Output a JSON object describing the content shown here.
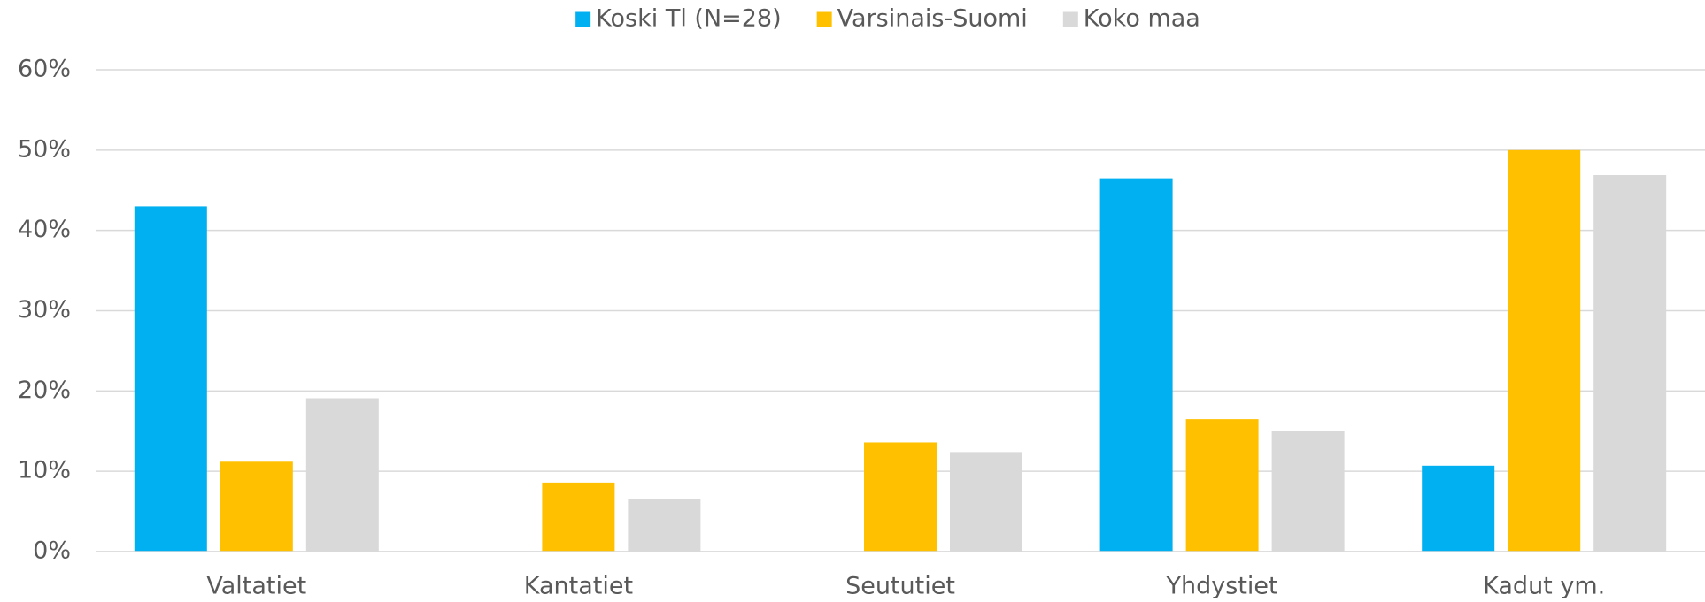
{
  "chart_data": {
    "type": "bar",
    "categories": [
      "Valtatiet",
      "Kantatiet",
      "Seututiet",
      "Yhdystiet",
      "Kadut ym."
    ],
    "series": [
      {
        "name": "Koski Tl (N=28)",
        "color": "#00b0f0",
        "values": [
          43,
          0,
          0,
          46.5,
          10.7
        ]
      },
      {
        "name": "Varsinais-Suomi",
        "color": "#ffc000",
        "values": [
          11.2,
          8.6,
          13.6,
          16.5,
          50
        ]
      },
      {
        "name": "Koko maa",
        "color": "#d9d9d9",
        "values": [
          19.1,
          6.5,
          12.4,
          15,
          46.9
        ]
      }
    ],
    "ylim": [
      0,
      60
    ],
    "yticks": [
      {
        "value": 0,
        "label": "0%"
      },
      {
        "value": 10,
        "label": "10%"
      },
      {
        "value": 20,
        "label": "20%"
      },
      {
        "value": 30,
        "label": "30%"
      },
      {
        "value": 40,
        "label": "40%"
      },
      {
        "value": 50,
        "label": "50%"
      },
      {
        "value": 60,
        "label": "60%"
      }
    ],
    "grid": true,
    "legend": "top"
  }
}
